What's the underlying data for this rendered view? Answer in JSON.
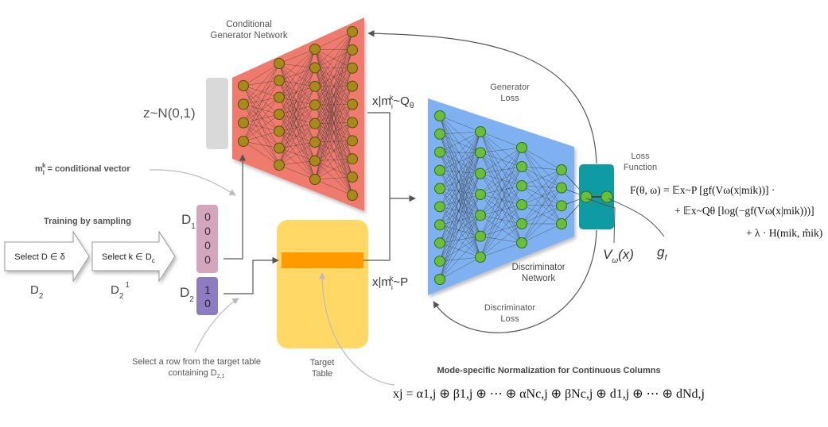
{
  "generator": {
    "title_line1": "Conditional",
    "title_line2": "Generator Network"
  },
  "noise": {
    "label": "z~N(0,1)"
  },
  "fake_sample": {
    "label": "x|m",
    "sub": "i",
    "sup": "k",
    "tail": "~Q",
    "tail_sub": "θ"
  },
  "real_sample": {
    "label": "x|m",
    "sub": "i",
    "sup": "k",
    "tail": "~P"
  },
  "generator_loss": {
    "line1": "Generator",
    "line2": "Loss"
  },
  "discriminator_loss": {
    "line1": "Discriminator",
    "line2": "Loss"
  },
  "discriminator": {
    "line1": "Discriminator",
    "line2": "Network"
  },
  "loss_function": {
    "line1": "Loss",
    "line2": "Function"
  },
  "cond_vector": {
    "m": "m",
    "sub": "i",
    "sup": "k",
    "text": "= conditional vector"
  },
  "training": {
    "title": "Training by sampling"
  },
  "step1": {
    "label": "Select D ∈ δ",
    "caption": "D",
    "caption_sub": "2"
  },
  "step2": {
    "label": "Select k ∈ D",
    "label_sub": "c",
    "caption": "D",
    "caption_sub": "2",
    "caption_sup": "1"
  },
  "d1": {
    "label": "D",
    "sub": "1",
    "values": [
      "0",
      "0",
      "0",
      "0"
    ]
  },
  "d2": {
    "label": "D",
    "sub": "2",
    "values": [
      "1",
      "0"
    ]
  },
  "select_row": {
    "line1": "Select a row from the target table",
    "line2": "containing D",
    "line2_sub": "2,1"
  },
  "target_table": {
    "line1": "Target",
    "line2": "Table"
  },
  "v_omega": {
    "v": "V",
    "sub": "ω",
    "tail": "(x)"
  },
  "g_f": {
    "g": "g",
    "sub": "f"
  },
  "formula": {
    "line1": "F(θ, ω) = 𝔼x~P [gf(Vω(x|mik))] ·",
    "line2": "+ 𝔼x~Qθ [log(−gf(Vω(x|mik)))]",
    "line3": "+ λ · H(mik, m̂ik)"
  },
  "normalization": {
    "title": "Mode-specific Normalization for Continuous Columns",
    "equation": "xj = α1,j ⊕ β1,j ⊕ ⋯ ⊕ αNc,j ⊕ βNc,j ⊕ d1,j ⊕ ⋯ ⊕ dNd,j"
  },
  "colors": {
    "generator_fill": "#ef7a6e",
    "discriminator_fill": "#7fb1f0",
    "target_fill": "#ffd866",
    "target_row": "#ff9a00",
    "loss_box": "#0e9ba3",
    "d1_fill": "#d4a6be",
    "d2_fill": "#8e7cc3",
    "noise_fill": "#d9d9d9",
    "node_gen": "#a68a1c",
    "node_disc": "#6abf3a",
    "arrow_box": "#ffffff"
  }
}
